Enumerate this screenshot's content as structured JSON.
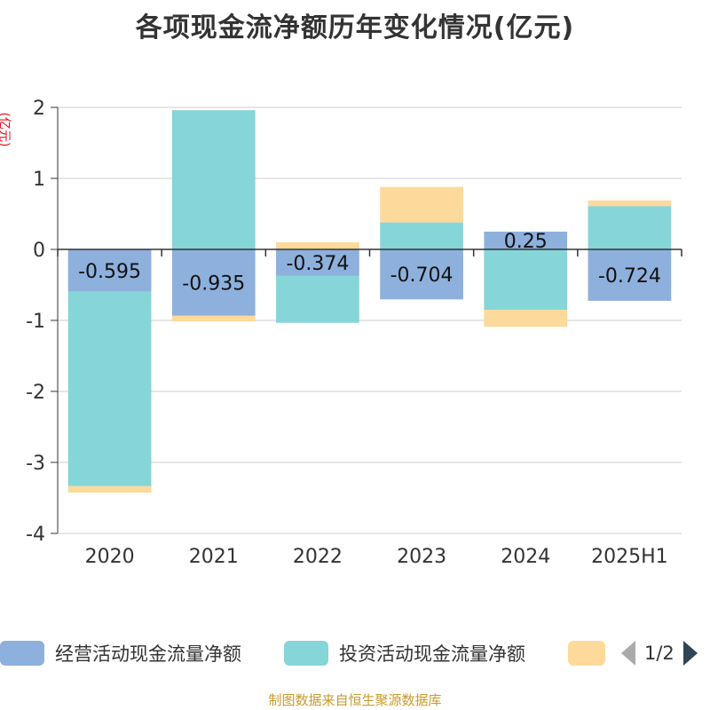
{
  "page": {
    "title": "各项现金流净额历年变化情况(亿元)",
    "unit_label": "(亿元)",
    "source": "制图数据来自恒生聚源数据库",
    "pager": "1/2"
  },
  "chart_data": {
    "type": "bar",
    "stacked": true,
    "title": "各项现金流净额历年变化情况(亿元)",
    "ylabel": "(亿元)",
    "ylim": [
      -4,
      2
    ],
    "yticks": [
      2,
      1,
      0,
      -1,
      -2,
      -3,
      -4
    ],
    "grid": true,
    "legend_position": "bottom",
    "categories": [
      "2020",
      "2021",
      "2022",
      "2023",
      "2024",
      "2025H1"
    ],
    "series": [
      {
        "name": "经营活动现金流量净额",
        "color": "#8eb0dd",
        "values": [
          -0.595,
          -0.935,
          -0.374,
          -0.704,
          0.25,
          -0.724
        ],
        "labels": [
          "-0.595",
          "-0.935",
          "-0.374",
          "-0.704",
          "0.25",
          "-0.724"
        ]
      },
      {
        "name": "投资活动现金流量净额",
        "color": "#86d5d8",
        "values": [
          -2.74,
          1.96,
          -0.66,
          0.38,
          -0.85,
          0.61
        ]
      },
      {
        "name": "",
        "color": "#fdd99b",
        "values": [
          -0.09,
          -0.08,
          0.1,
          0.5,
          -0.24,
          0.08
        ]
      }
    ]
  }
}
